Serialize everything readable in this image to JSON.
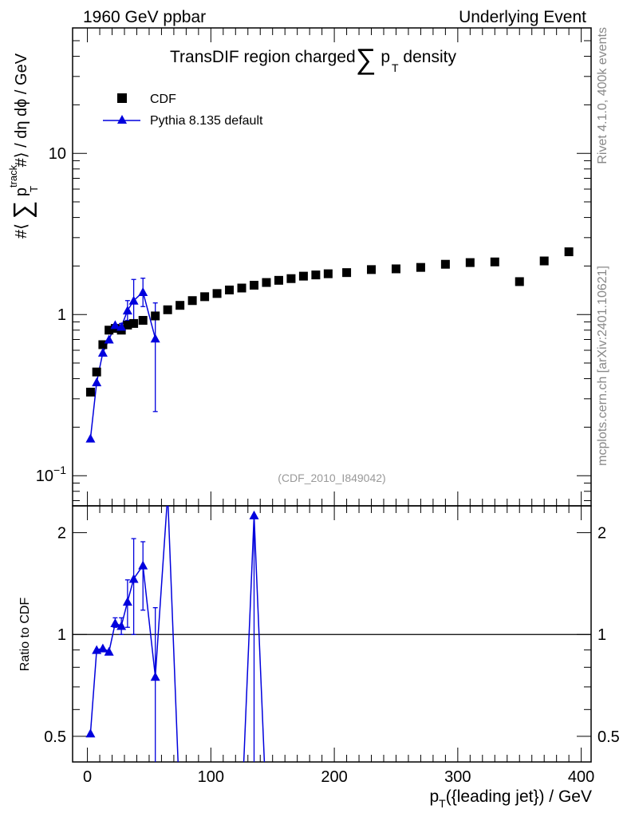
{
  "header": {
    "left": "1960 GeV ppbar",
    "right": "Underlying Event"
  },
  "side_labels": {
    "rivet": "Rivet 4.1.0,  400k events",
    "mcplots": "mcplots.cern.ch [arXiv:2401.10621]"
  },
  "chart_data": [
    {
      "type": "scatter",
      "panel": "main",
      "title_parts": {
        "prefix": "TransDIF region charged",
        "sum": "∑",
        "p": "p",
        "sub": "T",
        "suffix": " density"
      },
      "analysis_tag": "(CDF_2010_I849042)",
      "ylabel_parts": {
        "a": "#⟨ ",
        "sum": "∑",
        "p": " p",
        "sup": "track",
        "sub": "T",
        "b": " #⟩ / dη dϕ / GeV"
      },
      "yscale": "log",
      "ylim": [
        0.065,
        60
      ],
      "xlim": [
        -12,
        408
      ],
      "x_ticks": [
        0,
        100,
        200,
        300,
        400
      ],
      "y_tick_labels": [
        {
          "value": 0.1,
          "base": "10",
          "exp": "−1"
        },
        {
          "value": 1,
          "base": "1",
          "exp": ""
        },
        {
          "value": 10,
          "base": "10",
          "exp": ""
        }
      ],
      "legend": {
        "position": "top-left",
        "entries": [
          "CDF",
          "Pythia 8.135 default"
        ]
      },
      "series": [
        {
          "name": "CDF",
          "marker": "square",
          "color": "#000000",
          "x": [
            2.5,
            7.5,
            12.5,
            17.5,
            22.5,
            27.5,
            32.5,
            37.5,
            45,
            55,
            65,
            75,
            85,
            95,
            105,
            115,
            125,
            135,
            145,
            155,
            165,
            175,
            185,
            195,
            210,
            230,
            250,
            270,
            290,
            310,
            330,
            350,
            370,
            390
          ],
          "y": [
            0.33,
            0.44,
            0.65,
            0.8,
            0.82,
            0.8,
            0.86,
            0.88,
            0.92,
            0.98,
            1.07,
            1.14,
            1.22,
            1.29,
            1.35,
            1.42,
            1.46,
            1.52,
            1.58,
            1.63,
            1.67,
            1.73,
            1.76,
            1.79,
            1.82,
            1.9,
            1.92,
            1.96,
            2.05,
            2.1,
            2.12,
            1.6,
            2.15,
            2.45
          ]
        },
        {
          "name": "Pythia 8.135 default",
          "marker": "triangle",
          "color": "#0000dd",
          "x": [
            2.5,
            7.5,
            12.5,
            17.5,
            22.5,
            27.5,
            32.5,
            37.5,
            45,
            55
          ],
          "y": [
            0.17,
            0.38,
            0.58,
            0.7,
            0.86,
            0.84,
            1.06,
            1.22,
            1.38,
            0.71
          ],
          "err_low": [
            0.17,
            0.38,
            0.58,
            0.7,
            0.86,
            0.81,
            0.92,
            0.9,
            1.12,
            0.25
          ],
          "err_high": [
            0.17,
            0.38,
            0.58,
            0.7,
            0.86,
            0.88,
            1.22,
            1.65,
            1.68,
            1.18
          ]
        }
      ]
    },
    {
      "type": "line",
      "panel": "ratio",
      "ylabel": "Ratio to CDF",
      "xlabel_parts": {
        "p": "p",
        "sub": "T",
        "rest": "({leading jet}) / GeV"
      },
      "yscale": "log",
      "ylim": [
        0.42,
        2.4
      ],
      "xlim": [
        -12,
        408
      ],
      "x_ticks": [
        0,
        100,
        200,
        300,
        400
      ],
      "y_ticks": [
        0.5,
        1,
        2
      ],
      "reference_line": 1,
      "series": [
        {
          "name": "Pythia 8.135 default / CDF",
          "color": "#0000dd",
          "x": [
            2.5,
            7.5,
            12.5,
            17.5,
            22.5,
            27.5,
            32.5,
            37.5,
            45,
            55,
            65,
            75,
            125,
            135,
            145
          ],
          "y": [
            0.51,
            0.9,
            0.91,
            0.89,
            1.08,
            1.06,
            1.25,
            1.46,
            1.6,
            0.75,
            2.6,
            0.3,
            0.3,
            2.25,
            0.3
          ],
          "markers": [
            true,
            true,
            true,
            true,
            true,
            true,
            true,
            true,
            true,
            true,
            false,
            false,
            false,
            true,
            false
          ],
          "err_low": [
            0.51,
            0.9,
            0.91,
            0.89,
            1.05,
            1.0,
            1.05,
            1.0,
            1.18,
            0.25,
            2.6,
            0.3,
            0.3,
            0.3,
            0.3
          ],
          "err_high": [
            0.51,
            0.9,
            0.91,
            0.89,
            1.12,
            1.12,
            1.45,
            1.92,
            1.88,
            1.2,
            2.6,
            0.3,
            0.3,
            2.25,
            0.3
          ]
        }
      ]
    }
  ]
}
